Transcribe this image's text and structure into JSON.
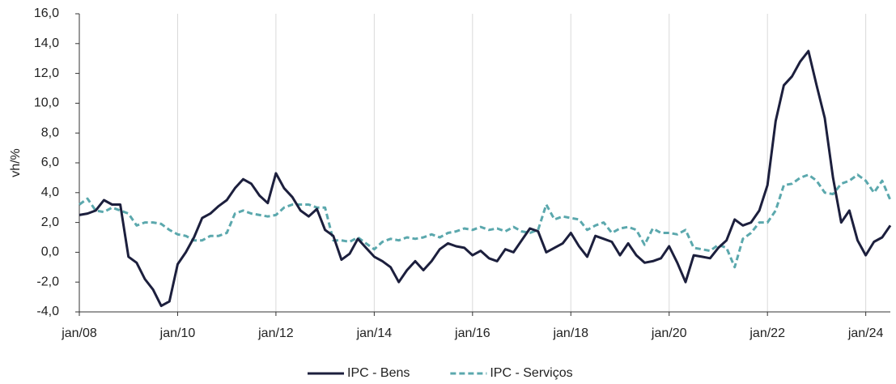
{
  "chart_data": {
    "type": "line",
    "y_label": "vh/%",
    "categories": [
      "jan/08",
      null,
      null,
      null,
      null,
      null,
      null,
      null,
      null,
      null,
      null,
      null,
      "jan/10",
      null,
      null,
      null,
      null,
      null,
      null,
      null,
      null,
      null,
      null,
      null,
      "jan/12",
      null,
      null,
      null,
      null,
      null,
      null,
      null,
      null,
      null,
      null,
      null,
      "jan/14",
      null,
      null,
      null,
      null,
      null,
      null,
      null,
      null,
      null,
      null,
      null,
      "jan/16",
      null,
      null,
      null,
      null,
      null,
      null,
      null,
      null,
      null,
      null,
      null,
      "jan/18",
      null,
      null,
      null,
      null,
      null,
      null,
      null,
      null,
      null,
      null,
      null,
      "jan/20",
      null,
      null,
      null,
      null,
      null,
      null,
      null,
      null,
      null,
      null,
      null,
      "jan/22",
      null,
      null,
      null,
      null,
      null,
      null,
      null,
      null,
      null,
      null,
      null,
      "jan/24",
      null,
      null,
      null
    ],
    "series": [
      {
        "name": "IPC - Bens",
        "color": "#1c1f3d",
        "dash": false,
        "values": [
          2.5,
          2.6,
          2.8,
          3.5,
          3.2,
          3.2,
          -0.3,
          -0.7,
          -1.8,
          -2.5,
          -3.6,
          -3.3,
          -0.8,
          0.0,
          1.0,
          2.3,
          2.6,
          3.1,
          3.5,
          4.3,
          4.9,
          4.6,
          3.8,
          3.3,
          5.3,
          4.3,
          3.7,
          2.8,
          2.4,
          2.9,
          1.5,
          1.1,
          -0.5,
          -0.1,
          0.9,
          0.3,
          -0.3,
          -0.6,
          -1.0,
          -2.0,
          -1.2,
          -0.6,
          -1.2,
          -0.6,
          0.2,
          0.6,
          0.4,
          0.3,
          -0.2,
          0.1,
          -0.4,
          -0.6,
          0.2,
          0.0,
          0.8,
          1.6,
          1.4,
          0.0,
          0.3,
          0.6,
          1.3,
          0.4,
          -0.3,
          1.1,
          0.9,
          0.7,
          -0.2,
          0.6,
          -0.2,
          -0.7,
          -0.6,
          -0.4,
          0.4,
          -0.7,
          -2.0,
          -0.2,
          -0.3,
          -0.4,
          0.3,
          0.8,
          2.2,
          1.8,
          2.0,
          2.8,
          4.5,
          8.8,
          11.2,
          11.8,
          12.8,
          13.5,
          11.2,
          9.0,
          5.0,
          2.0,
          2.8,
          0.8,
          -0.2,
          0.7,
          1.0,
          1.8
        ]
      },
      {
        "name": "IPC - Serviços",
        "color": "#5ba8ad",
        "dash": true,
        "values": [
          3.2,
          3.6,
          2.8,
          2.7,
          3.0,
          2.8,
          2.6,
          1.8,
          2.0,
          2.0,
          1.9,
          1.5,
          1.2,
          1.1,
          0.8,
          0.8,
          1.1,
          1.1,
          1.3,
          2.6,
          2.8,
          2.6,
          2.5,
          2.4,
          2.5,
          3.0,
          3.2,
          3.2,
          3.2,
          3.0,
          3.0,
          0.8,
          0.8,
          0.7,
          1.0,
          0.6,
          0.2,
          0.7,
          0.9,
          0.8,
          1.0,
          0.9,
          1.0,
          1.2,
          1.0,
          1.3,
          1.4,
          1.6,
          1.5,
          1.7,
          1.5,
          1.6,
          1.4,
          1.7,
          1.4,
          1.3,
          1.5,
          3.2,
          2.2,
          2.4,
          2.3,
          2.2,
          1.5,
          1.8,
          2.0,
          1.3,
          1.6,
          1.7,
          1.5,
          0.5,
          1.6,
          1.3,
          1.3,
          1.2,
          1.5,
          0.3,
          0.2,
          0.1,
          0.5,
          0.3,
          -1.0,
          0.9,
          1.3,
          2.0,
          2.0,
          2.8,
          4.5,
          4.6,
          5.0,
          5.2,
          4.8,
          4.0,
          3.9,
          4.6,
          4.8,
          5.2,
          4.8,
          4.0,
          4.8,
          3.5
        ]
      }
    ],
    "ylim": [
      -4,
      16
    ],
    "yticks": [
      {
        "value": -4,
        "label": "-4,0"
      },
      {
        "value": -2,
        "label": "-2,0"
      },
      {
        "value": 0,
        "label": "0,0"
      },
      {
        "value": 2,
        "label": "2,0"
      },
      {
        "value": 4,
        "label": "4,0"
      },
      {
        "value": 6,
        "label": "6,0"
      },
      {
        "value": 8,
        "label": "8,0"
      },
      {
        "value": 10,
        "label": "10,0"
      },
      {
        "value": 12,
        "label": "12,0"
      },
      {
        "value": 14,
        "label": "14,0"
      },
      {
        "value": 16,
        "label": "16,0"
      }
    ],
    "grid": "x",
    "legend": "bottom"
  }
}
